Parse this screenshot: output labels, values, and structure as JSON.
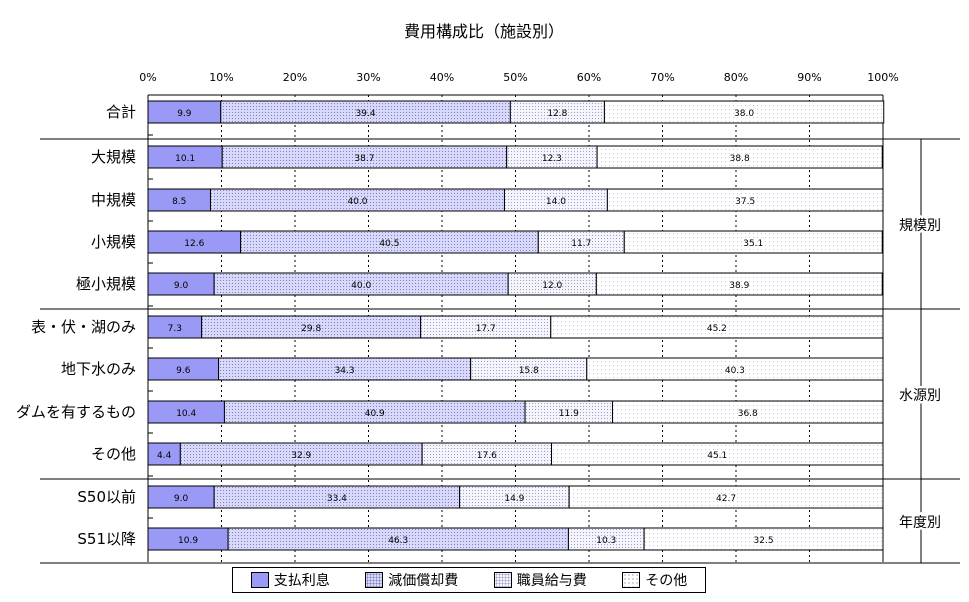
{
  "chart_data": {
    "type": "bar",
    "orientation": "horizontal",
    "stacked": true,
    "title": "費用構成比（施設別）",
    "xlim": [
      0,
      100
    ],
    "x_ticks": [
      "0%",
      "10%",
      "20%",
      "30%",
      "40%",
      "50%",
      "60%",
      "70%",
      "80%",
      "90%",
      "100%"
    ],
    "categories": [
      "合計",
      "大規模",
      "中規模",
      "小規模",
      "極小規模",
      "表・伏・湖のみ",
      "地下水のみ",
      "ダムを有するもの",
      "その他",
      "S50以前",
      "S51以降"
    ],
    "series": [
      {
        "name": "支払利息",
        "color": "#9a9af6",
        "values": [
          9.9,
          10.1,
          8.5,
          12.6,
          9.0,
          7.3,
          9.6,
          10.4,
          4.4,
          9.0,
          10.9
        ]
      },
      {
        "name": "減価償却費",
        "color": "#d8d8fa",
        "values": [
          39.4,
          38.7,
          40.0,
          40.5,
          40.0,
          29.8,
          34.3,
          40.9,
          32.9,
          33.4,
          46.3
        ]
      },
      {
        "name": "職員給与費",
        "color": "#f4f4fb",
        "values": [
          12.8,
          12.3,
          14.0,
          11.7,
          12.0,
          17.7,
          15.8,
          11.9,
          17.6,
          14.9,
          10.3
        ]
      },
      {
        "name": "その他",
        "color": "#ffffff",
        "values": [
          38.0,
          38.8,
          37.5,
          35.1,
          38.9,
          45.2,
          40.3,
          36.8,
          45.1,
          42.7,
          32.5
        ]
      }
    ],
    "groups": [
      {
        "label": "規模別",
        "categories": [
          "大規模",
          "中規模",
          "小規模",
          "極小規模"
        ]
      },
      {
        "label": "水源別",
        "categories": [
          "表・伏・湖のみ",
          "地下水のみ",
          "ダムを有するもの",
          "その他"
        ]
      },
      {
        "label": "年度別",
        "categories": [
          "S50以前",
          "S51以降"
        ]
      }
    ],
    "legend_position": "bottom",
    "grid": true
  }
}
